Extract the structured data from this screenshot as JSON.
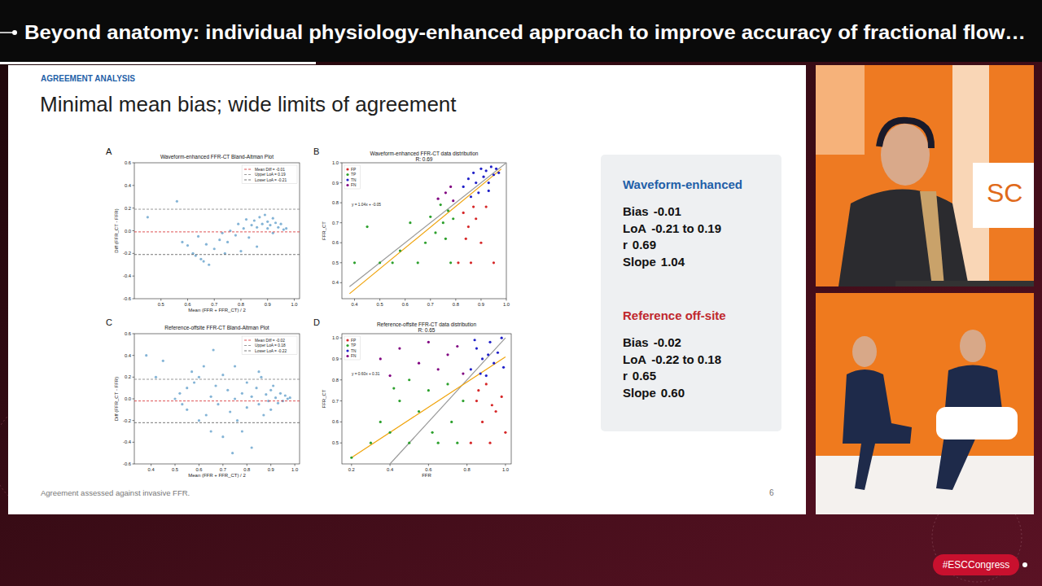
{
  "header": {
    "title": "Beyond anatomy: individual physiology‑enhanced approach to improve accuracy of fractional flow…"
  },
  "slide": {
    "section": "AGREEMENT ANALYSIS",
    "title": "Minimal mean bias; wide limits of agreement",
    "footnote": "Agreement assessed against invasive FFR.",
    "page": 6,
    "stats": [
      {
        "heading": "Waveform-enhanced",
        "color": "#1f5fa8",
        "rows": [
          {
            "label": "Bias",
            "value": "-0.01"
          },
          {
            "label": "LoA",
            "value": "-0.21 to 0.19"
          },
          {
            "label": "r",
            "value": "0.69"
          },
          {
            "label": "Slope",
            "value": "1.04"
          }
        ]
      },
      {
        "heading": "Reference off-site",
        "color": "#c0282d",
        "rows": [
          {
            "label": "Bias",
            "value": "-0.02"
          },
          {
            "label": "LoA",
            "value": "-0.22 to 0.18"
          },
          {
            "label": "r",
            "value": "0.65"
          },
          {
            "label": "Slope",
            "value": "0.60"
          }
        ]
      }
    ]
  },
  "stream": {
    "hashtag": "#ESCCongress",
    "sign": "SC"
  },
  "chart_data": [
    {
      "panel": "A",
      "type": "scatter",
      "title": "Waveform-enhanced FFR-CT Bland-Altman Plot",
      "x_label": "Mean (FFR + FFR_CT) / 2",
      "y_label": "Diff (FFR_CT - FFR)",
      "xlim": [
        0.4,
        1.02
      ],
      "ylim": [
        -0.6,
        0.6
      ],
      "xticks": [
        0.5,
        0.6,
        0.7,
        0.8,
        0.9,
        {
          "value": 1,
          "label": "1.0"
        }
      ],
      "yticks": [
        -0.6,
        -0.4,
        -0.2,
        {
          "value": 0,
          "label": "0.0"
        },
        0.2,
        0.4,
        0.6
      ],
      "grid": false,
      "legend": "upper right",
      "series": [
        {
          "color": "#1f77b4",
          "marker": "circle",
          "x": [
            0.45,
            0.56,
            0.58,
            0.6,
            0.62,
            0.63,
            0.65,
            0.66,
            0.68,
            0.64,
            0.67,
            0.7,
            0.72,
            0.73,
            0.75,
            0.76,
            0.78,
            0.79,
            0.8,
            0.81,
            0.82,
            0.83,
            0.84,
            0.85,
            0.86,
            0.87,
            0.88,
            0.89,
            0.9,
            0.9,
            0.91,
            0.92,
            0.92,
            0.93,
            0.94,
            0.95,
            0.96,
            0.97,
            0.86,
            0.74
          ],
          "values": [
            0.12,
            0.26,
            -0.1,
            -0.13,
            -0.2,
            -0.22,
            -0.25,
            -0.27,
            -0.3,
            -0.05,
            -0.12,
            -0.16,
            -0.08,
            -0.02,
            -0.1,
            0.0,
            -0.04,
            0.06,
            -0.18,
            0.02,
            0.1,
            -0.06,
            0.05,
            0.09,
            0.03,
            0.12,
            0.06,
            0.14,
            0.08,
            0.02,
            0.05,
            0.11,
            -0.02,
            0.07,
            0.03,
            0.06,
            0.01,
            0.02,
            -0.14,
            -0.2
          ]
        }
      ],
      "hlines": [
        {
          "name": "Mean Diff = -0.01",
          "value": -0.01,
          "color": "#d62728",
          "line_style": "dashed"
        },
        {
          "name": "Upper LoA = 0.19",
          "value": 0.19,
          "color": "#7f7f7f",
          "line_style": "dashed"
        },
        {
          "name": "Lower LoA = -0.21",
          "value": -0.21,
          "color": "#555555",
          "line_style": "dashed"
        }
      ]
    },
    {
      "panel": "B",
      "type": "scatter",
      "title": "Waveform-enhanced FFR-CT data distribution",
      "subtitle": "R: 0.69",
      "y_label": "FFR_CT",
      "xlim": [
        0.35,
        1.0
      ],
      "ylim": [
        0.32,
        1.0
      ],
      "xticks": [
        0.4,
        0.5,
        0.6,
        0.7,
        0.8,
        0.9,
        {
          "value": 1,
          "label": "1.0"
        }
      ],
      "yticks": [
        0.4,
        0.5,
        0.6,
        0.7,
        0.8,
        0.9,
        {
          "value": 1,
          "label": "1.0"
        }
      ],
      "grid": false,
      "legend": "upper left",
      "series": [
        {
          "name": "FP",
          "color": "#d62728",
          "marker": "circle",
          "x": [
            0.81,
            0.83,
            0.85,
            0.86,
            0.87,
            0.88,
            0.9,
            0.92,
            0.95,
            0.84
          ],
          "values": [
            0.5,
            0.75,
            0.68,
            0.5,
            0.78,
            0.72,
            0.6,
            0.78,
            0.5,
            0.62
          ]
        },
        {
          "name": "TP",
          "color": "#2ca02c",
          "marker": "circle",
          "x": [
            0.45,
            0.5,
            0.55,
            0.58,
            0.62,
            0.65,
            0.68,
            0.7,
            0.72,
            0.74,
            0.75,
            0.76,
            0.77,
            0.78,
            0.79,
            0.4
          ],
          "values": [
            0.68,
            0.5,
            0.5,
            0.56,
            0.7,
            0.5,
            0.6,
            0.73,
            0.65,
            0.79,
            0.7,
            0.62,
            0.76,
            0.5,
            0.72,
            0.5
          ]
        },
        {
          "name": "TN",
          "color": "#1f1fc8",
          "marker": "circle",
          "x": [
            0.83,
            0.85,
            0.87,
            0.88,
            0.9,
            0.91,
            0.92,
            0.93,
            0.94,
            0.95,
            0.96,
            0.97,
            0.89,
            0.86,
            0.93
          ],
          "values": [
            0.88,
            0.92,
            0.95,
            0.9,
            0.97,
            0.93,
            0.96,
            0.9,
            0.98,
            0.94,
            0.97,
            0.95,
            0.85,
            0.83,
            0.86
          ]
        },
        {
          "name": "FN",
          "color": "#800080",
          "marker": "circle",
          "x": [
            0.73,
            0.76,
            0.78,
            0.79
          ],
          "values": [
            0.82,
            0.85,
            0.88,
            0.81
          ]
        }
      ],
      "lines": [
        {
          "color": "#999999",
          "x": [
            0.38,
            1.0
          ],
          "values": [
            0.38,
            1.0
          ]
        },
        {
          "color": "#f0a30a",
          "x": [
            0.38,
            0.98
          ],
          "values": [
            0.345,
            0.969
          ]
        }
      ],
      "annotations": [
        "y = 1.04x + -0.05"
      ]
    },
    {
      "panel": "C",
      "type": "scatter",
      "title": "Reference-offsite FFR-CT Bland-Altman Plot",
      "x_label": "Mean (FFR + FFR_CT) / 2",
      "y_label": "Diff (FFR_CT - FFR)",
      "xlim": [
        0.33,
        1.02
      ],
      "ylim": [
        -0.6,
        0.6
      ],
      "xticks": [
        0.4,
        0.5,
        0.6,
        0.7,
        0.8,
        0.9,
        {
          "value": 1,
          "label": "1.0"
        }
      ],
      "yticks": [
        -0.6,
        -0.4,
        -0.2,
        {
          "value": 0,
          "label": "0.0"
        },
        0.2,
        0.4,
        0.6
      ],
      "grid": false,
      "legend": "upper right",
      "series": [
        {
          "color": "#1f77b4",
          "marker": "circle",
          "x": [
            0.38,
            0.42,
            0.45,
            0.5,
            0.52,
            0.53,
            0.55,
            0.55,
            0.58,
            0.6,
            0.6,
            0.62,
            0.63,
            0.65,
            0.65,
            0.67,
            0.68,
            0.7,
            0.7,
            0.72,
            0.73,
            0.75,
            0.75,
            0.76,
            0.78,
            0.8,
            0.8,
            0.82,
            0.82,
            0.84,
            0.85,
            0.86,
            0.87,
            0.88,
            0.89,
            0.9,
            0.9,
            0.91,
            0.92,
            0.93,
            0.94,
            0.95,
            0.96,
            0.97,
            0.98,
            0.74,
            0.57,
            0.66,
            0.85,
            0.78
          ],
          "values": [
            0.4,
            0.2,
            0.35,
            0.0,
            0.05,
            -0.05,
            0.1,
            -0.1,
            0.15,
            -0.2,
            0.2,
            0.3,
            -0.15,
            0.02,
            -0.3,
            0.12,
            -0.05,
            0.22,
            -0.35,
            0.08,
            -0.12,
            0.0,
            0.3,
            -0.2,
            0.05,
            -0.08,
            0.15,
            -0.45,
            0.02,
            0.1,
            -0.05,
            0.2,
            -0.15,
            0.04,
            -0.02,
            0.08,
            -0.1,
            0.12,
            0.01,
            -0.04,
            0.05,
            -0.02,
            0.03,
            0.0,
            0.01,
            -0.5,
            0.25,
            0.45,
            0.25,
            -0.3
          ]
        }
      ],
      "hlines": [
        {
          "name": "Mean Diff = -0.02",
          "value": -0.02,
          "color": "#d62728",
          "line_style": "dashed"
        },
        {
          "name": "Upper LoA = 0.18",
          "value": 0.18,
          "color": "#7f7f7f",
          "line_style": "dashed"
        },
        {
          "name": "Lower LoA = -0.22",
          "value": -0.22,
          "color": "#555555",
          "line_style": "dashed"
        }
      ]
    },
    {
      "panel": "D",
      "type": "scatter",
      "title": "Reference-offsite FFR-CT data distribution",
      "subtitle": "R: 0.65",
      "x_label": "FFR",
      "y_label": "FFR_CT",
      "xlim": [
        0.15,
        1.03
      ],
      "ylim": [
        0.4,
        1.02
      ],
      "xticks": [
        0.2,
        0.4,
        0.6,
        0.8,
        {
          "value": 1,
          "label": "1.0"
        }
      ],
      "yticks": [
        0.5,
        0.6,
        0.7,
        0.8,
        0.9,
        {
          "value": 1,
          "label": "1.0"
        }
      ],
      "grid": false,
      "legend": "upper left",
      "series": [
        {
          "name": "FP",
          "color": "#d62728",
          "marker": "circle",
          "x": [
            0.82,
            0.85,
            0.88,
            0.9,
            0.92,
            0.95,
            0.98,
            1.0,
            0.86,
            0.93
          ],
          "values": [
            0.5,
            0.7,
            0.6,
            0.78,
            0.5,
            0.65,
            0.72,
            0.55,
            0.75,
            0.68
          ]
        },
        {
          "name": "TP",
          "color": "#2ca02c",
          "marker": "circle",
          "x": [
            0.2,
            0.3,
            0.35,
            0.4,
            0.45,
            0.5,
            0.55,
            0.6,
            0.62,
            0.65,
            0.7,
            0.72,
            0.75,
            0.78,
            0.5,
            0.42
          ],
          "values": [
            0.43,
            0.5,
            0.6,
            0.55,
            0.7,
            0.5,
            0.65,
            0.75,
            0.55,
            0.5,
            0.78,
            0.6,
            0.5,
            0.7,
            0.8,
            0.76
          ]
        },
        {
          "name": "TN",
          "color": "#1f1fc8",
          "marker": "circle",
          "x": [
            0.82,
            0.85,
            0.88,
            0.9,
            0.92,
            0.94,
            0.96,
            0.98,
            0.87,
            0.99,
            0.91,
            0.84
          ],
          "values": [
            0.85,
            0.95,
            0.9,
            0.82,
            0.98,
            0.88,
            0.93,
            1.0,
            0.83,
            0.86,
            0.92,
            0.99
          ]
        },
        {
          "name": "FN",
          "color": "#800080",
          "marker": "circle",
          "x": [
            0.4,
            0.45,
            0.55,
            0.6,
            0.65,
            0.7,
            0.75,
            0.78,
            0.35
          ],
          "values": [
            0.82,
            0.95,
            0.88,
            0.98,
            0.85,
            0.92,
            0.96,
            0.83,
            0.9
          ]
        }
      ],
      "lines": [
        {
          "color": "#999999",
          "x": [
            0.4,
            1.0
          ],
          "values": [
            0.4,
            1.0
          ]
        },
        {
          "color": "#f0a30a",
          "x": [
            0.2,
            1.0
          ],
          "values": [
            0.43,
            0.91
          ]
        }
      ],
      "annotations": [
        "y = 0.60x + 0.31"
      ]
    }
  ]
}
